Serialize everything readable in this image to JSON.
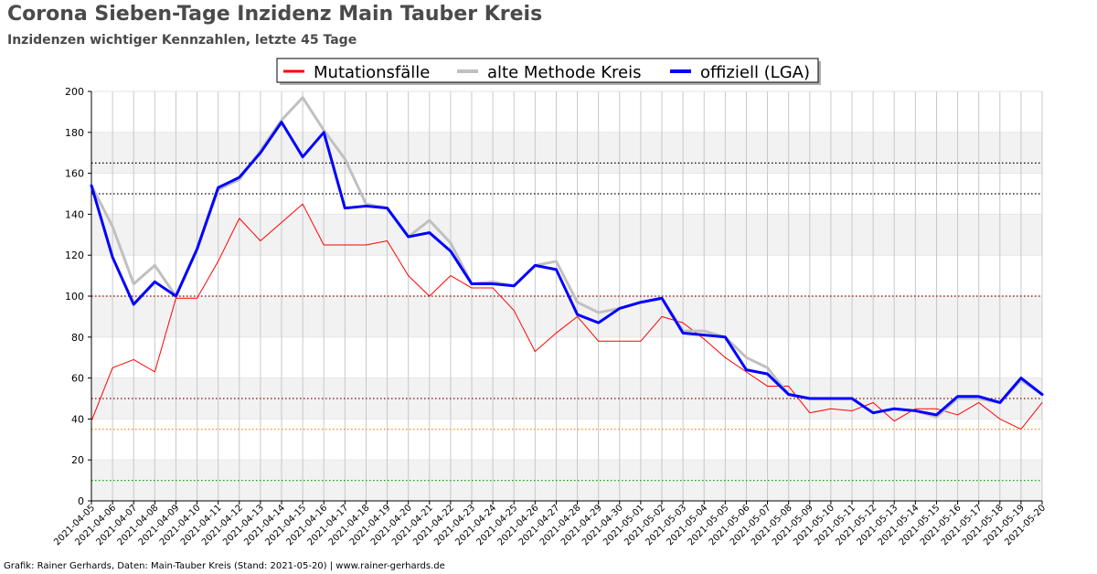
{
  "title": "Corona Sieben-Tage Inzidenz Main Tauber Kreis",
  "subtitle": "Inzidenzen wichtiger Kennzahlen, letzte 45 Tage",
  "footer": "Grafik: Rainer Gerhards, Daten: Main-Tauber Kreis (Stand: 2021-05-20) | www.rainer-gerhards.de",
  "chart_data": {
    "type": "line",
    "title": "Corona Sieben-Tage Inzidenz Main Tauber Kreis",
    "subtitle": "Inzidenzen wichtiger Kennzahlen, letzte 45 Tage",
    "xlabel": "",
    "ylabel": "",
    "ylim": [
      0,
      200
    ],
    "yticks": [
      0,
      20,
      40,
      60,
      80,
      100,
      120,
      140,
      160,
      180,
      200
    ],
    "grid": true,
    "legend_position": "top-center",
    "x": [
      "2021-04-05",
      "2021-04-06",
      "2021-04-07",
      "2021-04-08",
      "2021-04-09",
      "2021-04-10",
      "2021-04-11",
      "2021-04-12",
      "2021-04-13",
      "2021-04-14",
      "2021-04-15",
      "2021-04-16",
      "2021-04-17",
      "2021-04-18",
      "2021-04-19",
      "2021-04-20",
      "2021-04-21",
      "2021-04-22",
      "2021-04-23",
      "2021-04-24",
      "2021-04-25",
      "2021-04-26",
      "2021-04-27",
      "2021-04-28",
      "2021-04-29",
      "2021-04-30",
      "2021-05-01",
      "2021-05-02",
      "2021-05-03",
      "2021-05-04",
      "2021-05-05",
      "2021-05-06",
      "2021-05-07",
      "2021-05-08",
      "2021-05-09",
      "2021-05-10",
      "2021-05-11",
      "2021-05-12",
      "2021-05-13",
      "2021-05-14",
      "2021-05-15",
      "2021-05-16",
      "2021-05-17",
      "2021-05-18",
      "2021-05-19",
      "2021-05-20"
    ],
    "reference_lines": [
      {
        "value": 165,
        "color": "#000000"
      },
      {
        "value": 150,
        "color": "#000000"
      },
      {
        "value": 100,
        "color": "#8b0000"
      },
      {
        "value": 50,
        "color": "#8b0000"
      },
      {
        "value": 35,
        "color": "#ff8c00"
      },
      {
        "value": 10,
        "color": "#00aa00"
      }
    ],
    "series": [
      {
        "name": "Mutationsfälle",
        "color": "#ff0000",
        "values": [
          39,
          65,
          69,
          63,
          99,
          99,
          117,
          138,
          127,
          136,
          145,
          125,
          125,
          125,
          127,
          110,
          100,
          110,
          104,
          104,
          93,
          73,
          82,
          90,
          78,
          78,
          78,
          90,
          87,
          79,
          70,
          63,
          56,
          56,
          43,
          45,
          44,
          48,
          39,
          45,
          45,
          42,
          48,
          40,
          35,
          48
        ]
      },
      {
        "name": "alte Methode Kreis",
        "color": "#c0c0c0",
        "values": [
          154,
          134,
          106,
          115,
          100,
          123,
          152,
          157,
          171,
          186,
          197,
          181,
          167,
          145,
          143,
          129,
          137,
          126,
          106,
          107,
          105,
          115,
          117,
          97,
          92,
          94,
          97,
          99,
          83,
          83,
          80,
          70,
          65,
          52,
          50,
          50,
          50,
          43,
          45,
          44,
          41,
          50,
          50,
          48,
          59,
          52
        ]
      },
      {
        "name": "offiziell (LGA)",
        "color": "#0000ff",
        "values": [
          154,
          119,
          96,
          107,
          100,
          123,
          153,
          158,
          170,
          185,
          168,
          180,
          143,
          144,
          143,
          129,
          131,
          122,
          106,
          106,
          105,
          115,
          113,
          91,
          87,
          94,
          97,
          99,
          82,
          81,
          80,
          64,
          62,
          52,
          50,
          50,
          50,
          43,
          45,
          44,
          42,
          51,
          51,
          48,
          60,
          52
        ]
      }
    ]
  }
}
